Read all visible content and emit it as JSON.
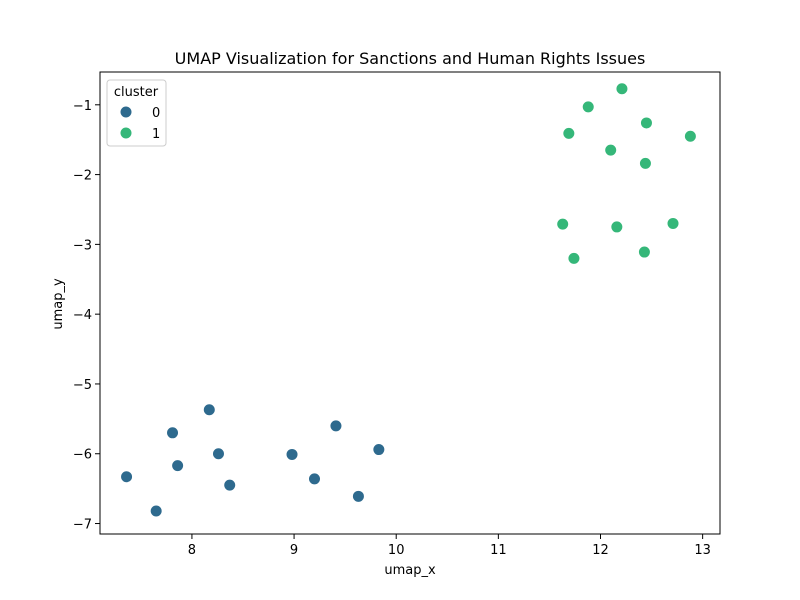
{
  "chart_data": {
    "type": "scatter",
    "title": "UMAP Visualization for Sanctions and Human Rights Issues",
    "xlabel": "umap_x",
    "ylabel": "umap_y",
    "xlim": [
      7.1,
      13.17
    ],
    "ylim": [
      -7.15,
      -0.53
    ],
    "x_ticks": [
      8,
      9,
      10,
      11,
      12,
      13
    ],
    "y_ticks": [
      -1,
      -2,
      -3,
      -4,
      -5,
      -6,
      -7
    ],
    "x_tick_labels": [
      "8",
      "9",
      "10",
      "11",
      "12",
      "13"
    ],
    "y_tick_labels": [
      "−1",
      "−2",
      "−3",
      "−4",
      "−5",
      "−6",
      "−7"
    ],
    "grid": false,
    "legend": {
      "title": "cluster",
      "placement": "top-left"
    },
    "series": [
      {
        "name": "0",
        "color": "#2e6a8e",
        "points": [
          [
            7.36,
            -6.33
          ],
          [
            7.65,
            -6.82
          ],
          [
            7.81,
            -5.7
          ],
          [
            7.86,
            -6.17
          ],
          [
            8.17,
            -5.37
          ],
          [
            8.26,
            -6.0
          ],
          [
            8.37,
            -6.45
          ],
          [
            8.98,
            -6.01
          ],
          [
            9.2,
            -6.36
          ],
          [
            9.41,
            -5.6
          ],
          [
            9.63,
            -6.61
          ],
          [
            9.83,
            -5.94
          ]
        ]
      },
      {
        "name": "1",
        "color": "#35b779",
        "points": [
          [
            11.63,
            -2.71
          ],
          [
            11.69,
            -1.41
          ],
          [
            11.74,
            -3.2
          ],
          [
            11.88,
            -1.03
          ],
          [
            12.1,
            -1.65
          ],
          [
            12.16,
            -2.75
          ],
          [
            12.21,
            -0.77
          ],
          [
            12.43,
            -3.11
          ],
          [
            12.44,
            -1.84
          ],
          [
            12.45,
            -1.26
          ],
          [
            12.71,
            -2.7
          ],
          [
            12.88,
            -1.45
          ]
        ]
      }
    ]
  }
}
